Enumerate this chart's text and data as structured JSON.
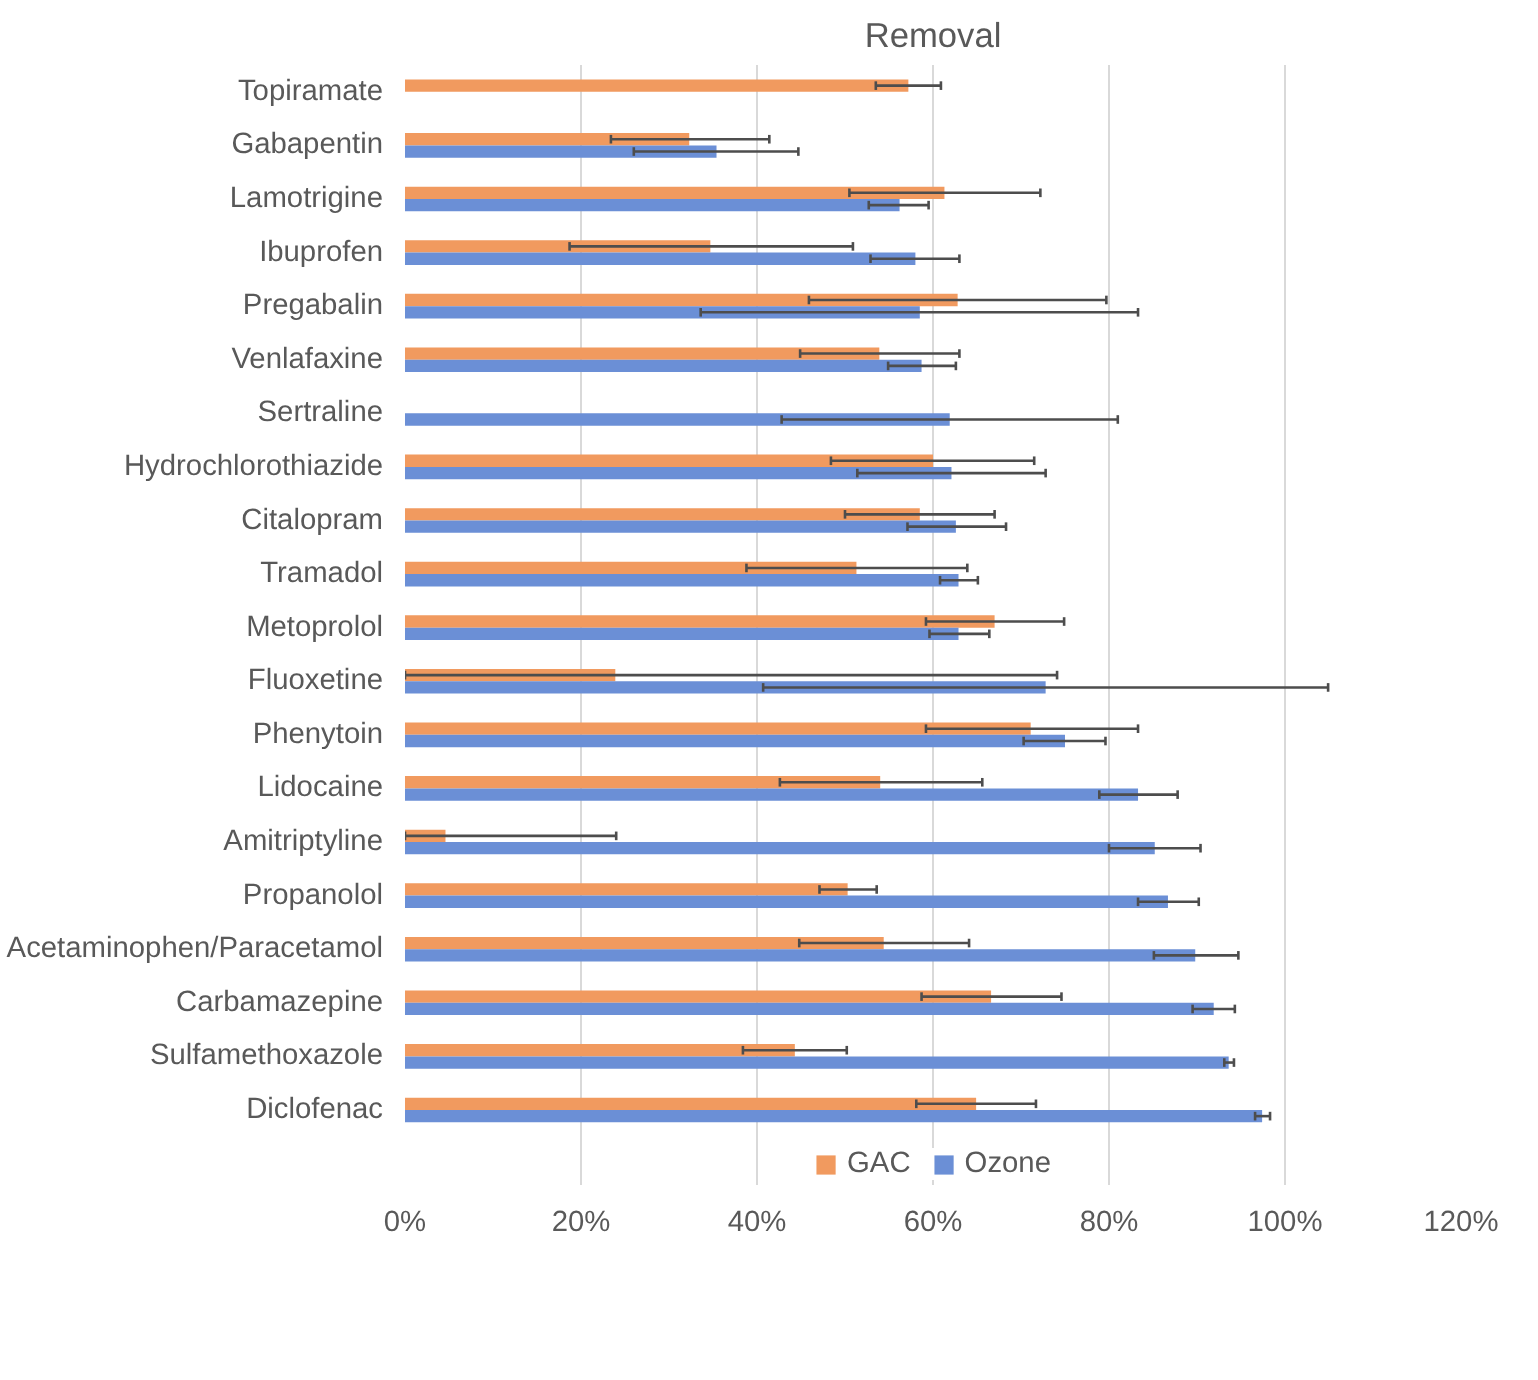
{
  "chart_data": {
    "type": "bar",
    "orientation": "horizontal",
    "title": "Removal",
    "categories": [
      "Topiramate",
      "Gabapentin",
      "Lamotrigine",
      "Ibuprofen",
      "Pregabalin",
      "Venlafaxine",
      "Sertraline",
      "Hydrochlorothiazide",
      "Citalopram",
      "Tramadol",
      "Metoprolol",
      "Fluoxetine",
      "Phenytoin",
      "Lidocaine",
      "Amitriptyline",
      "Propanolol",
      "Acetaminophen/Paracetamol",
      "Carbamazepine",
      "Sulfamethoxazole",
      "Diclofenac"
    ],
    "series": [
      {
        "name": "GAC",
        "color": "#f19a5f",
        "values": [
          57.2,
          32.3,
          61.3,
          34.7,
          62.8,
          53.9,
          null,
          60.0,
          58.5,
          51.3,
          67.0,
          23.9,
          71.1,
          54.0,
          4.6,
          50.3,
          54.4,
          66.6,
          44.3,
          64.9
        ],
        "errors": [
          [
            53.5,
            60.9
          ],
          [
            23.4,
            41.4
          ],
          [
            50.5,
            72.2
          ],
          [
            18.7,
            50.9
          ],
          [
            45.9,
            79.7
          ],
          [
            44.9,
            63.0
          ],
          null,
          [
            48.4,
            71.5
          ],
          [
            50.0,
            67.0
          ],
          [
            38.8,
            63.9
          ],
          [
            59.2,
            74.9
          ],
          [
            0,
            74.1
          ],
          [
            59.2,
            83.3
          ],
          [
            42.6,
            65.6
          ],
          [
            0,
            24.0
          ],
          [
            47.1,
            53.6
          ],
          [
            44.8,
            64.1
          ],
          [
            58.7,
            74.6
          ],
          [
            38.4,
            50.2
          ],
          [
            58.1,
            71.7
          ]
        ]
      },
      {
        "name": "Ozone",
        "color": "#6b8fd6",
        "values": [
          null,
          35.4,
          56.2,
          58.0,
          58.5,
          58.7,
          61.9,
          62.1,
          62.6,
          62.9,
          62.9,
          72.8,
          75.0,
          83.3,
          85.2,
          86.7,
          89.8,
          91.9,
          93.6,
          97.4
        ],
        "errors": [
          null,
          [
            26.0,
            44.7
          ],
          [
            52.7,
            59.5
          ],
          [
            52.9,
            63.0
          ],
          [
            33.6,
            83.3
          ],
          [
            54.9,
            62.6
          ],
          [
            42.8,
            81.0
          ],
          [
            51.4,
            72.8
          ],
          [
            57.1,
            68.3
          ],
          [
            60.8,
            65.1
          ],
          [
            59.6,
            66.4
          ],
          [
            40.7,
            104.9
          ],
          [
            70.3,
            79.6
          ],
          [
            78.9,
            87.8
          ],
          [
            80.0,
            90.4
          ],
          [
            83.3,
            90.2
          ],
          [
            85.1,
            94.7
          ],
          [
            89.5,
            94.3
          ],
          [
            93.1,
            94.2
          ],
          [
            96.6,
            98.3
          ]
        ]
      }
    ],
    "xlim": [
      0,
      120
    ],
    "xticks": [
      {
        "value": 0,
        "label": "0%"
      },
      {
        "value": 20,
        "label": "20%"
      },
      {
        "value": 40,
        "label": "40%"
      },
      {
        "value": 60,
        "label": "60%"
      },
      {
        "value": 80,
        "label": "80%"
      },
      {
        "value": 100,
        "label": "100%"
      },
      {
        "value": 120,
        "label": "120%"
      }
    ],
    "grid": "x",
    "legend": "bottom"
  }
}
